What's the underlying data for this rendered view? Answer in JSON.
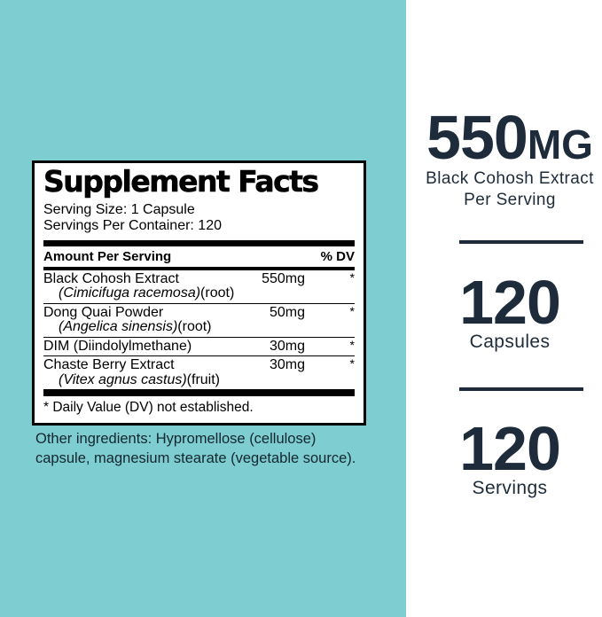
{
  "colors": {
    "teal_background": "#7ECDD1",
    "navy_text": "#1D2B3A",
    "label_text": "#000000",
    "panel_background": "#FFFFFF"
  },
  "facts": {
    "title": "Supplement Facts",
    "serving_size": "Serving Size: 1 Capsule",
    "servings_per_container": "Servings Per Container: 120",
    "amount_header": "Amount Per Serving",
    "dv_header": "% DV",
    "rows": [
      {
        "name": "Black Cohosh Extract",
        "latin": "(Cimicifuga racemosa)",
        "part": "(root)",
        "amount": "550mg",
        "dv": "*"
      },
      {
        "name": "Dong Quai Powder",
        "latin": "(Angelica sinensis)",
        "part": "(root)",
        "amount": "50mg",
        "dv": "*"
      },
      {
        "name": "DIM (Diindolylmethane)",
        "latin": "",
        "part": "",
        "amount": "30mg",
        "dv": "*"
      },
      {
        "name": "Chaste Berry Extract",
        "latin": "(Vitex agnus castus)",
        "part": "(fruit)",
        "amount": "30mg",
        "dv": "*"
      }
    ],
    "footnote": "* Daily Value (DV) not established.",
    "other_ingredients": "Other ingredients: Hypromellose (cellulose) capsule, magnesium stearate (vegetable source)."
  },
  "highlights": [
    {
      "value": "550",
      "unit": "MG",
      "caption_line1": "Black Cohosh Extract",
      "caption_line2": "Per Serving"
    },
    {
      "value": "120",
      "caption": "Capsules"
    },
    {
      "value": "120",
      "caption": "Servings"
    }
  ]
}
